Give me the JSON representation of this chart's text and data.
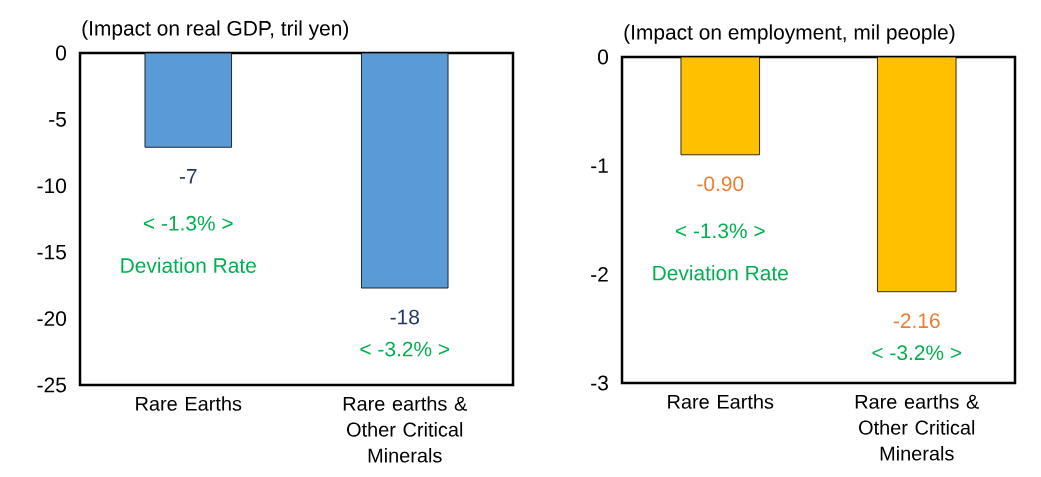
{
  "chart_data": [
    {
      "type": "bar",
      "title": "(Impact on real GDP,  tril yen)",
      "categories": [
        "Rare Earths",
        "Rare earths & Other Critical Minerals"
      ],
      "values": [
        -7.1,
        -17.7
      ],
      "value_labels": [
        "-7",
        "-18"
      ],
      "color": "#5b9bd5",
      "ylim": [
        -25,
        0
      ],
      "yticks": [
        0,
        -5,
        -10,
        -15,
        -20,
        -25
      ],
      "grid": false,
      "annotations": [
        "< -1.3% >",
        "Deviation Rate",
        "< -3.2% >"
      ]
    },
    {
      "type": "bar",
      "title": "(Impact on employment, mil people)",
      "categories": [
        "Rare Earths",
        "Rare earths & Other Critical Minerals"
      ],
      "values": [
        -0.9,
        -2.16
      ],
      "value_labels": [
        "-0.90",
        "-2.16"
      ],
      "color": "#ffc000",
      "ylim": [
        -3,
        0
      ],
      "yticks": [
        0,
        -1,
        -2,
        -3
      ],
      "grid": false,
      "annotations": [
        "< -1.3% >",
        "Deviation Rate",
        "< -3.2% >"
      ]
    }
  ]
}
